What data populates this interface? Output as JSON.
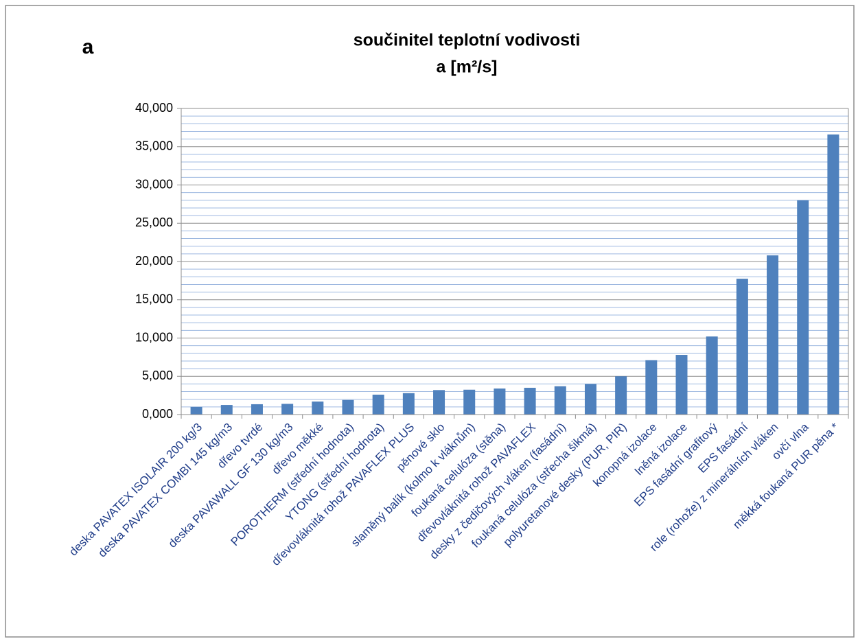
{
  "chart_data": {
    "type": "bar",
    "label": "a",
    "title": "součinitel teplotní vodivosti",
    "subtitle": "a  [m²/s]",
    "categories": [
      "deska PAVATEX ISOLAIR 200 kg/3",
      "deska PAVATEX COMBI 145 kg/m3",
      "dřevo tvrdé",
      "deska PAVAWALL GF 130 kg/m3",
      "dřevo měkké",
      "POROTHERM (střední hodnota)",
      "YTONG (střední hodnota)",
      "dřevovláknitá rohož PAVAFLEX PLUS",
      "pěnové sklo",
      "slaměný balík (kolmo k vláknům)",
      "foukaná celulóza (stěna)",
      "dřevovláknitá rohož PAVAFLEX",
      "desky z čedičových vláken (fasádní)",
      "foukaná celulóza (střecha šikmá)",
      "polyuretanové desky (PUR, PIR)",
      "konopná izolace",
      "lněná izolace",
      "EPS fasádní grafitový",
      "EPS fasádní",
      "role (rohože) z minerálních vláken",
      "ovčí vlna",
      "měkká foukaná PUR pěna *"
    ],
    "values": [
      1.0,
      1.25,
      1.35,
      1.4,
      1.7,
      1.9,
      2.6,
      2.8,
      3.2,
      3.25,
      3.4,
      3.5,
      3.7,
      4.0,
      5.0,
      7.1,
      7.8,
      10.2,
      17.75,
      20.8,
      28.0,
      36.6
    ],
    "color": "#4f81bd",
    "ylim": [
      0,
      40
    ],
    "yticks": [
      {
        "value": 0,
        "label": "0,000"
      },
      {
        "value": 5,
        "label": "5,000"
      },
      {
        "value": 10,
        "label": "10,000"
      },
      {
        "value": 15,
        "label": "15,000"
      },
      {
        "value": 20,
        "label": "20,000"
      },
      {
        "value": 25,
        "label": "25,000"
      },
      {
        "value": 30,
        "label": "30,000"
      },
      {
        "value": 35,
        "label": "35,000"
      },
      {
        "value": 40,
        "label": "40,000"
      }
    ],
    "yminor_ticks": [
      1,
      2,
      3,
      4,
      6,
      7,
      8,
      9,
      11,
      12,
      13,
      14,
      16,
      17,
      18,
      19,
      21,
      22,
      23,
      24,
      26,
      27,
      28,
      29,
      31,
      32,
      33,
      34,
      36,
      37,
      38,
      39
    ],
    "grid": true
  }
}
